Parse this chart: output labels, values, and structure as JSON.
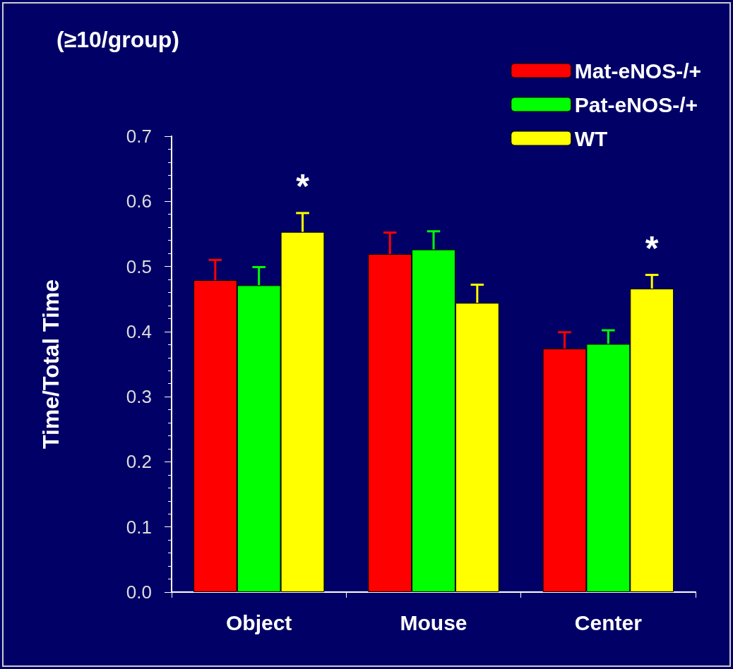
{
  "chart_data": {
    "type": "bar",
    "title": "(≥10/group)",
    "ylabel": "Time/Total Time",
    "categories": [
      "Object",
      "Mouse",
      "Center"
    ],
    "series": [
      {
        "name": "Mat-eNOS-/+",
        "color": "#ff0000",
        "values": [
          0.479,
          0.519,
          0.374
        ],
        "errors": [
          [
            0.479,
            0.51
          ],
          [
            0.519,
            0.552
          ],
          [
            0.374,
            0.399
          ]
        ]
      },
      {
        "name": "Pat-eNOS-/+",
        "color": "#00ff00",
        "values": [
          0.471,
          0.526,
          0.381
        ],
        "errors": [
          [
            0.471,
            0.499
          ],
          [
            0.526,
            0.554
          ],
          [
            0.381,
            0.402
          ]
        ]
      },
      {
        "name": "WT",
        "color": "#ffff00",
        "values": [
          0.553,
          0.444,
          0.466
        ],
        "errors": [
          [
            0.553,
            0.582
          ],
          [
            0.444,
            0.472
          ],
          [
            0.466,
            0.487
          ]
        ],
        "value_labels": [
          "*",
          null,
          "*"
        ]
      }
    ],
    "ylim": [
      0,
      0.7
    ],
    "yticks": [
      {
        "value": 0,
        "label": "0.0"
      },
      0.1,
      0.2,
      0.3,
      0.4,
      0.5,
      0.6,
      0.7
    ],
    "grid": false,
    "legend": "top right"
  }
}
